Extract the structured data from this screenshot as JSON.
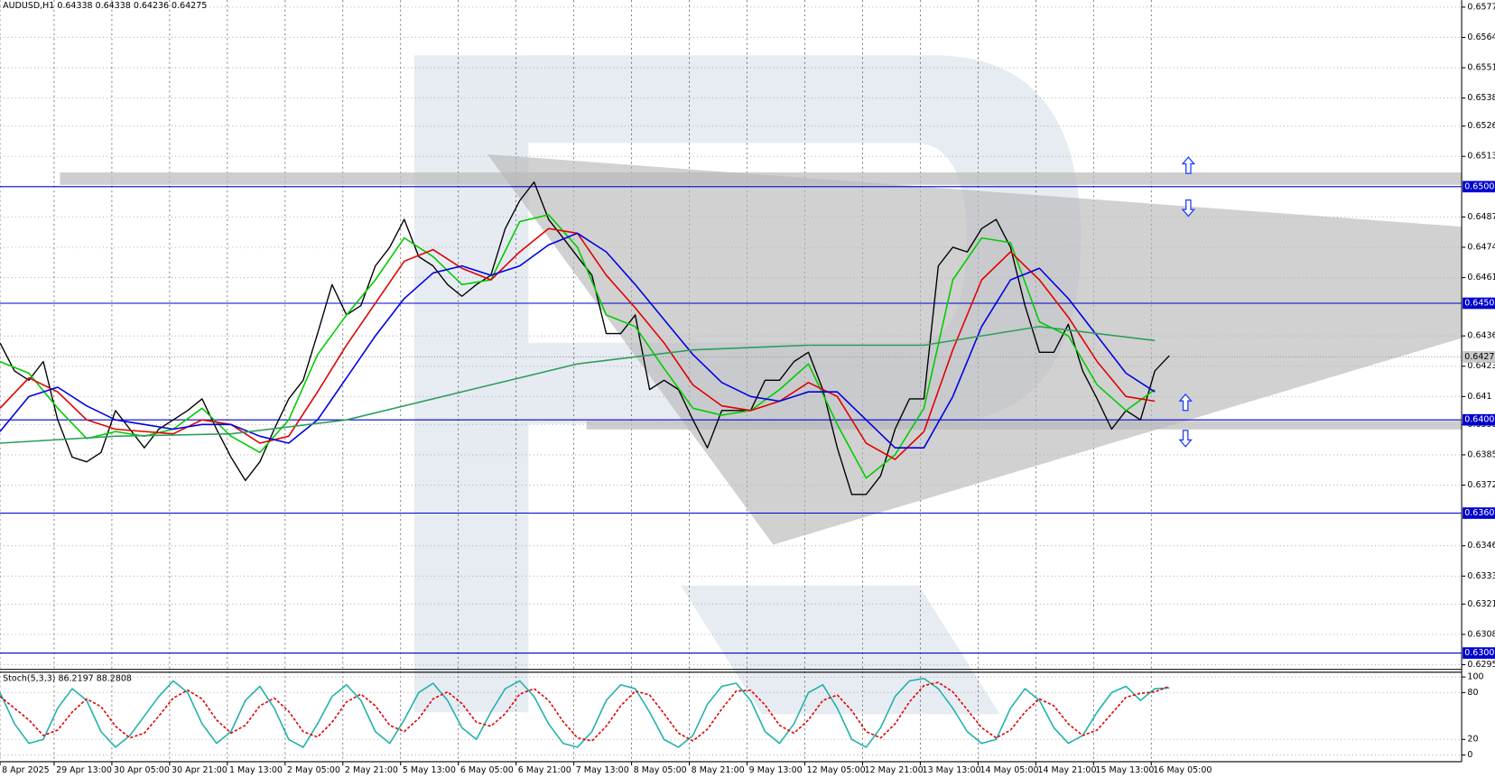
{
  "chart_data": [
    {
      "type": "line",
      "title": "AUDUSD,H1  0.64338 0.64338 0.64236 0.64275",
      "xlim": [
        0,
        405
      ],
      "xticks": [
        {
          "value": 0,
          "label": "8 Apr 2025"
        },
        {
          "value": 15,
          "label": "29 Apr 13:00"
        },
        {
          "value": 31,
          "label": "30 Apr 05:00"
        },
        {
          "value": 47,
          "label": "30 Apr 21:00"
        },
        {
          "value": 63,
          "label": "1 May 13:00"
        },
        {
          "value": 79,
          "label": "2 May 05:00"
        },
        {
          "value": 95,
          "label": "2 May 21:00"
        },
        {
          "value": 111,
          "label": "5 May 13:00"
        },
        {
          "value": 127,
          "label": "6 May 05:00"
        },
        {
          "value": 143,
          "label": "6 May 21:00"
        },
        {
          "value": 159,
          "label": "7 May 13:00"
        },
        {
          "value": 175,
          "label": "8 May 05:00"
        },
        {
          "value": 191,
          "label": "8 May 21:00"
        },
        {
          "value": 207,
          "label": "9 May 13:00"
        },
        {
          "value": 223,
          "label": "12 May 05:00"
        },
        {
          "value": 239,
          "label": "12 May 21:00"
        },
        {
          "value": 255,
          "label": "13 May 13:00"
        },
        {
          "value": 271,
          "label": "14 May 05:00"
        },
        {
          "value": 287,
          "label": "14 May 21:00"
        },
        {
          "value": 303,
          "label": "15 May 13:00"
        },
        {
          "value": 319,
          "label": "16 May 05:00"
        }
      ],
      "ylim": [
        0.6293,
        0.658
      ],
      "yticks": [
        0.6577,
        0.6564,
        0.6551,
        0.6538,
        0.6526,
        0.6513,
        0.6487,
        0.6474,
        0.6461,
        0.6436,
        0.6423,
        0.641,
        0.6398,
        0.6385,
        0.6372,
        0.6346,
        0.6333,
        0.6321,
        0.6308,
        0.6295
      ],
      "levels": [
        {
          "value": 0.65,
          "label": "0.6500"
        },
        {
          "value": 0.645,
          "label": "0.6450"
        },
        {
          "value": 0.64,
          "label": "0.6400"
        },
        {
          "value": 0.636,
          "label": "0.6360"
        },
        {
          "value": 0.63,
          "label": "0.6300"
        }
      ],
      "current": {
        "value": 0.6427,
        "label": "0.6427"
      },
      "grid": true,
      "x": [
        0,
        4,
        8,
        12,
        16,
        20,
        24,
        28,
        32,
        36,
        40,
        44,
        48,
        52,
        56,
        60,
        64,
        68,
        72,
        76,
        80,
        84,
        88,
        92,
        96,
        100,
        104,
        108,
        112,
        116,
        120,
        124,
        128,
        132,
        136,
        140,
        144,
        148,
        152,
        156,
        160,
        164,
        168,
        172,
        176,
        180,
        184,
        188,
        192,
        196,
        200,
        204,
        208,
        212,
        216,
        220,
        224,
        228,
        232,
        236,
        240,
        244,
        248,
        252,
        256,
        260,
        264,
        268,
        272,
        276,
        280,
        284,
        288,
        292,
        296,
        300,
        304,
        308,
        312,
        316,
        320,
        324
      ],
      "series": [
        {
          "color": "#000000",
          "values": [
            0.6433,
            0.6421,
            0.6417,
            0.6425,
            0.64,
            0.6384,
            0.6382,
            0.6386,
            0.6404,
            0.6396,
            0.6388,
            0.6396,
            0.64,
            0.6404,
            0.6409,
            0.6396,
            0.6384,
            0.6374,
            0.6382,
            0.6396,
            0.6409,
            0.6417,
            0.6437,
            0.6458,
            0.6445,
            0.6449,
            0.6466,
            0.6474,
            0.6486,
            0.647,
            0.6466,
            0.6458,
            0.6453,
            0.6458,
            0.6462,
            0.6482,
            0.6494,
            0.6502,
            0.6486,
            0.6478,
            0.647,
            0.6462,
            0.6437,
            0.6437,
            0.6445,
            0.6413,
            0.6417,
            0.6413,
            0.64,
            0.6388,
            0.6404,
            0.6404,
            0.6404,
            0.6417,
            0.6417,
            0.6425,
            0.6429,
            0.6413,
            0.6388,
            0.6368,
            0.6368,
            0.6376,
            0.6396,
            0.6409,
            0.6409,
            0.6466,
            0.6474,
            0.6472,
            0.6482,
            0.6486,
            0.6474,
            0.6449,
            0.6429,
            0.6429,
            0.6441,
            0.6421,
            0.6409,
            0.6396,
            0.6404,
            0.64,
            0.6421,
            0.64275
          ]
        },
        {
          "color": "#00cc00",
          "x": [
            0,
            8,
            16,
            24,
            32,
            40,
            48,
            56,
            64,
            72,
            80,
            88,
            96,
            104,
            112,
            120,
            128,
            136,
            144,
            152,
            160,
            168,
            176,
            184,
            192,
            200,
            208,
            216,
            224,
            232,
            240,
            248,
            256,
            264,
            272,
            280,
            288,
            296,
            304,
            312,
            320
          ],
          "values": [
            0.6425,
            0.642,
            0.6405,
            0.6392,
            0.6395,
            0.6393,
            0.6396,
            0.6405,
            0.6393,
            0.6386,
            0.64,
            0.6428,
            0.6445,
            0.646,
            0.6478,
            0.647,
            0.6458,
            0.646,
            0.6485,
            0.6488,
            0.6474,
            0.6445,
            0.644,
            0.6422,
            0.6405,
            0.6402,
            0.6404,
            0.6413,
            0.6424,
            0.6398,
            0.6375,
            0.6385,
            0.6405,
            0.646,
            0.6478,
            0.6476,
            0.6442,
            0.6436,
            0.6415,
            0.6404,
            0.6413
          ]
        },
        {
          "color": "#e00000",
          "x": [
            0,
            8,
            16,
            24,
            32,
            40,
            48,
            56,
            64,
            72,
            80,
            88,
            96,
            104,
            112,
            120,
            128,
            136,
            144,
            152,
            160,
            168,
            176,
            184,
            192,
            200,
            208,
            216,
            224,
            232,
            240,
            248,
            256,
            264,
            272,
            280,
            288,
            296,
            304,
            312,
            320
          ],
          "values": [
            0.6405,
            0.6418,
            0.6412,
            0.64,
            0.6396,
            0.6395,
            0.6394,
            0.64,
            0.6398,
            0.639,
            0.6393,
            0.6412,
            0.6432,
            0.645,
            0.6468,
            0.6473,
            0.6465,
            0.646,
            0.6472,
            0.6482,
            0.648,
            0.6462,
            0.6448,
            0.6433,
            0.6415,
            0.6406,
            0.6404,
            0.6408,
            0.6416,
            0.641,
            0.639,
            0.6383,
            0.6395,
            0.643,
            0.646,
            0.6472,
            0.646,
            0.6444,
            0.6425,
            0.641,
            0.6408
          ]
        },
        {
          "color": "#0000e0",
          "x": [
            0,
            8,
            16,
            24,
            32,
            40,
            48,
            56,
            64,
            72,
            80,
            88,
            96,
            104,
            112,
            120,
            128,
            136,
            144,
            152,
            160,
            168,
            176,
            184,
            192,
            200,
            208,
            216,
            224,
            232,
            240,
            248,
            256,
            264,
            272,
            280,
            288,
            296,
            304,
            312,
            320
          ],
          "values": [
            0.6395,
            0.641,
            0.6414,
            0.6406,
            0.64,
            0.6398,
            0.6396,
            0.6398,
            0.6398,
            0.6393,
            0.639,
            0.64,
            0.6418,
            0.6436,
            0.6452,
            0.6463,
            0.6466,
            0.6462,
            0.6466,
            0.6475,
            0.648,
            0.6472,
            0.6458,
            0.6443,
            0.6428,
            0.6416,
            0.641,
            0.6408,
            0.6412,
            0.6412,
            0.64,
            0.6388,
            0.6388,
            0.641,
            0.644,
            0.646,
            0.6465,
            0.6452,
            0.6436,
            0.642,
            0.6412
          ]
        },
        {
          "color": "#2e9e5b",
          "x": [
            0,
            32,
            64,
            96,
            128,
            160,
            192,
            224,
            256,
            288,
            320
          ],
          "values": [
            0.639,
            0.6393,
            0.6394,
            0.64,
            0.6412,
            0.6424,
            0.643,
            0.6432,
            0.6432,
            0.644,
            0.6434
          ]
        }
      ]
    },
    {
      "type": "line",
      "title": "Stoch(5,3,3) 86.2197 88.2808",
      "xlim": [
        0,
        405
      ],
      "ylim": [
        0,
        100
      ],
      "yticks": [
        100,
        80,
        20,
        0
      ],
      "x": [
        0,
        4,
        8,
        12,
        16,
        20,
        24,
        28,
        32,
        36,
        40,
        44,
        48,
        52,
        56,
        60,
        64,
        68,
        72,
        76,
        80,
        84,
        88,
        92,
        96,
        100,
        104,
        108,
        112,
        116,
        120,
        124,
        128,
        132,
        136,
        140,
        144,
        148,
        152,
        156,
        160,
        164,
        168,
        172,
        176,
        180,
        184,
        188,
        192,
        196,
        200,
        204,
        208,
        212,
        216,
        220,
        224,
        228,
        232,
        236,
        240,
        244,
        248,
        252,
        256,
        260,
        264,
        268,
        272,
        276,
        280,
        284,
        288,
        292,
        296,
        300,
        304,
        308,
        312,
        316,
        320,
        324
      ],
      "series": [
        {
          "color": "#20b2aa",
          "values": [
            80,
            40,
            15,
            20,
            60,
            85,
            70,
            30,
            10,
            25,
            50,
            75,
            95,
            80,
            40,
            15,
            30,
            70,
            88,
            60,
            20,
            10,
            40,
            75,
            90,
            70,
            30,
            15,
            45,
            80,
            92,
            70,
            35,
            20,
            55,
            85,
            95,
            75,
            40,
            15,
            10,
            30,
            70,
            90,
            85,
            55,
            20,
            10,
            25,
            65,
            88,
            92,
            70,
            30,
            15,
            40,
            80,
            90,
            60,
            20,
            10,
            35,
            75,
            95,
            98,
            85,
            60,
            30,
            15,
            20,
            60,
            85,
            70,
            35,
            15,
            25,
            55,
            80,
            88,
            70,
            85,
            86
          ]
        },
        {
          "color": "#e00000",
          "dash": true,
          "values": [
            75,
            60,
            45,
            25,
            32,
            55,
            72,
            62,
            37,
            22,
            28,
            50,
            73,
            83,
            72,
            45,
            28,
            38,
            63,
            73,
            56,
            30,
            23,
            42,
            68,
            78,
            63,
            38,
            30,
            47,
            72,
            81,
            66,
            42,
            37,
            53,
            78,
            85,
            70,
            43,
            22,
            18,
            37,
            63,
            82,
            77,
            53,
            28,
            18,
            33,
            59,
            82,
            83,
            64,
            38,
            28,
            45,
            70,
            77,
            57,
            30,
            22,
            40,
            68,
            89,
            93,
            81,
            58,
            35,
            22,
            32,
            55,
            72,
            63,
            40,
            25,
            32,
            53,
            74,
            79,
            81,
            88
          ]
        }
      ]
    }
  ]
}
